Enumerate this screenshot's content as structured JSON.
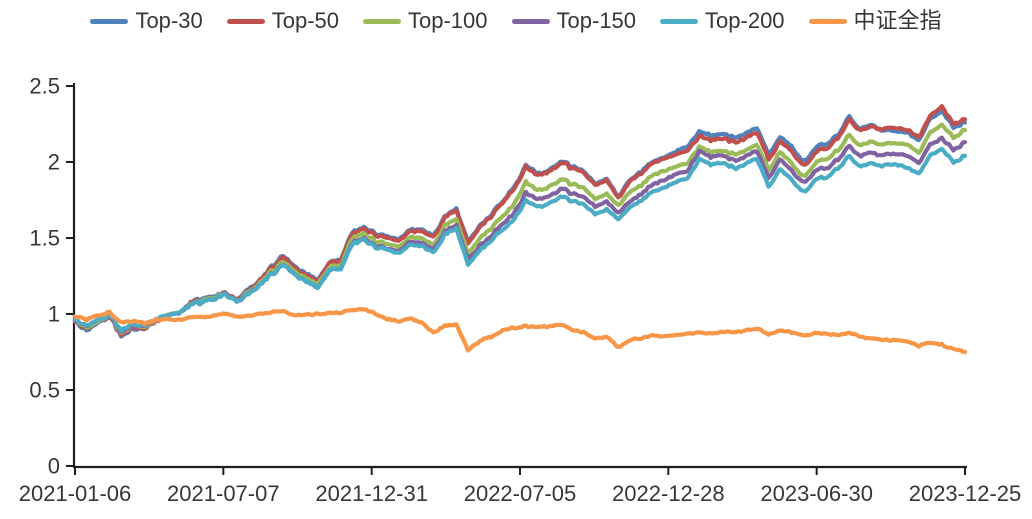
{
  "chart_data": {
    "type": "line",
    "title": "",
    "xlabel": "",
    "ylabel": "",
    "ylim": [
      0,
      2.5
    ],
    "grid": false,
    "legend_position": "top",
    "axis_color": "#1f1f1f",
    "text_color": "#363636",
    "y_tick_labels": [
      "0",
      "0.5",
      "1",
      "1.5",
      "2",
      "2.5"
    ],
    "x_tick_labels": [
      "2021-01-06",
      "2021-07-07",
      "2021-12-31",
      "2022-07-05",
      "2022-12-28",
      "2023-06-30",
      "2023-12-25"
    ],
    "dates": [
      "2021-01-06",
      "2021-01-20",
      "2021-02-03",
      "2021-02-17",
      "2021-03-03",
      "2021-03-17",
      "2021-03-31",
      "2021-04-14",
      "2021-04-28",
      "2021-05-12",
      "2021-05-26",
      "2021-06-09",
      "2021-06-23",
      "2021-07-07",
      "2021-07-21",
      "2021-08-04",
      "2021-08-18",
      "2021-09-01",
      "2021-09-15",
      "2021-09-29",
      "2021-10-13",
      "2021-10-27",
      "2021-11-10",
      "2021-11-24",
      "2021-12-08",
      "2021-12-22",
      "2022-01-05",
      "2022-01-19",
      "2022-02-02",
      "2022-02-16",
      "2022-03-02",
      "2022-03-16",
      "2022-03-30",
      "2022-04-13",
      "2022-04-27",
      "2022-05-11",
      "2022-05-25",
      "2022-06-08",
      "2022-06-22",
      "2022-07-06",
      "2022-07-20",
      "2022-08-03",
      "2022-08-17",
      "2022-08-31",
      "2022-09-14",
      "2022-09-28",
      "2022-10-12",
      "2022-10-26",
      "2022-11-09",
      "2022-11-23",
      "2022-12-07",
      "2022-12-21",
      "2023-01-04",
      "2023-01-18",
      "2023-02-01",
      "2023-02-15",
      "2023-03-01",
      "2023-03-15",
      "2023-03-29",
      "2023-04-12",
      "2023-04-26",
      "2023-05-10",
      "2023-05-24",
      "2023-06-07",
      "2023-06-21",
      "2023-07-05",
      "2023-07-19",
      "2023-08-02",
      "2023-08-16",
      "2023-08-30",
      "2023-09-13",
      "2023-09-27",
      "2023-10-11",
      "2023-10-25",
      "2023-11-08",
      "2023-11-22",
      "2023-12-06",
      "2023-12-25"
    ],
    "series": [
      {
        "name": "Top-30",
        "slug": "top-30",
        "color": "#4F81BD",
        "values": [
          0.96,
          0.89,
          0.94,
          0.98,
          0.86,
          0.9,
          0.9,
          0.95,
          0.99,
          1.01,
          1.07,
          1.1,
          1.12,
          1.14,
          1.1,
          1.16,
          1.23,
          1.31,
          1.38,
          1.31,
          1.26,
          1.23,
          1.33,
          1.36,
          1.54,
          1.57,
          1.53,
          1.51,
          1.49,
          1.56,
          1.55,
          1.51,
          1.64,
          1.69,
          1.47,
          1.58,
          1.65,
          1.75,
          1.83,
          1.98,
          1.92,
          1.94,
          2.01,
          1.97,
          1.94,
          1.86,
          1.89,
          1.77,
          1.88,
          1.93,
          2.01,
          2.03,
          2.06,
          2.11,
          2.2,
          2.17,
          2.19,
          2.16,
          2.19,
          2.22,
          2.05,
          2.16,
          2.1,
          2.0,
          2.09,
          2.12,
          2.18,
          2.3,
          2.21,
          2.25,
          2.2,
          2.21,
          2.2,
          2.14,
          2.29,
          2.33,
          2.23,
          2.26
        ]
      },
      {
        "name": "Top-50",
        "slug": "top-50",
        "color": "#C0504D",
        "values": [
          0.96,
          0.9,
          0.95,
          0.98,
          0.87,
          0.91,
          0.9,
          0.95,
          0.99,
          1.01,
          1.07,
          1.09,
          1.11,
          1.14,
          1.1,
          1.15,
          1.23,
          1.3,
          1.37,
          1.3,
          1.25,
          1.22,
          1.33,
          1.35,
          1.53,
          1.56,
          1.52,
          1.5,
          1.48,
          1.55,
          1.54,
          1.5,
          1.63,
          1.68,
          1.46,
          1.57,
          1.64,
          1.74,
          1.82,
          1.97,
          1.91,
          1.93,
          2.0,
          1.96,
          1.93,
          1.85,
          1.88,
          1.76,
          1.87,
          1.92,
          2.0,
          2.02,
          2.04,
          2.08,
          2.17,
          2.14,
          2.16,
          2.13,
          2.16,
          2.19,
          2.02,
          2.13,
          2.07,
          1.97,
          2.06,
          2.09,
          2.16,
          2.28,
          2.2,
          2.24,
          2.21,
          2.23,
          2.22,
          2.16,
          2.31,
          2.36,
          2.25,
          2.28
        ]
      },
      {
        "name": "Top-100",
        "slug": "top-100",
        "color": "#9BBB59",
        "values": [
          0.97,
          0.91,
          0.95,
          0.99,
          0.88,
          0.92,
          0.91,
          0.96,
          0.99,
          1.01,
          1.06,
          1.09,
          1.11,
          1.13,
          1.09,
          1.14,
          1.21,
          1.28,
          1.34,
          1.28,
          1.23,
          1.2,
          1.3,
          1.32,
          1.5,
          1.53,
          1.48,
          1.46,
          1.44,
          1.51,
          1.49,
          1.45,
          1.58,
          1.62,
          1.39,
          1.5,
          1.56,
          1.65,
          1.72,
          1.87,
          1.81,
          1.83,
          1.89,
          1.85,
          1.83,
          1.76,
          1.79,
          1.71,
          1.8,
          1.84,
          1.92,
          1.94,
          1.96,
          2.0,
          2.1,
          2.06,
          2.08,
          2.05,
          2.08,
          2.11,
          1.95,
          2.06,
          1.99,
          1.9,
          1.99,
          2.02,
          2.08,
          2.18,
          2.1,
          2.14,
          2.11,
          2.13,
          2.12,
          2.06,
          2.2,
          2.24,
          2.16,
          2.21
        ]
      },
      {
        "name": "Top-150",
        "slug": "top-150",
        "color": "#8064A2",
        "values": [
          0.97,
          0.92,
          0.96,
          0.99,
          0.89,
          0.92,
          0.92,
          0.96,
          0.99,
          1.01,
          1.06,
          1.08,
          1.1,
          1.13,
          1.09,
          1.13,
          1.2,
          1.26,
          1.32,
          1.26,
          1.21,
          1.18,
          1.28,
          1.3,
          1.47,
          1.5,
          1.45,
          1.43,
          1.41,
          1.48,
          1.46,
          1.42,
          1.54,
          1.58,
          1.35,
          1.45,
          1.51,
          1.6,
          1.66,
          1.8,
          1.75,
          1.77,
          1.83,
          1.79,
          1.77,
          1.71,
          1.74,
          1.66,
          1.74,
          1.78,
          1.86,
          1.88,
          1.91,
          1.95,
          2.07,
          2.03,
          2.05,
          2.01,
          2.04,
          2.07,
          1.9,
          2.01,
          1.94,
          1.86,
          1.94,
          1.96,
          2.02,
          2.11,
          2.03,
          2.07,
          2.04,
          2.06,
          2.05,
          1.99,
          2.12,
          2.15,
          2.08,
          2.13
        ]
      },
      {
        "name": "Top-200",
        "slug": "top-200",
        "color": "#4BACC6",
        "values": [
          0.97,
          0.92,
          0.96,
          0.99,
          0.9,
          0.93,
          0.92,
          0.96,
          0.99,
          1.01,
          1.06,
          1.08,
          1.1,
          1.13,
          1.09,
          1.13,
          1.2,
          1.26,
          1.32,
          1.26,
          1.21,
          1.18,
          1.28,
          1.3,
          1.46,
          1.49,
          1.44,
          1.42,
          1.4,
          1.46,
          1.44,
          1.4,
          1.52,
          1.56,
          1.32,
          1.42,
          1.48,
          1.56,
          1.62,
          1.75,
          1.7,
          1.72,
          1.78,
          1.74,
          1.72,
          1.66,
          1.69,
          1.62,
          1.7,
          1.74,
          1.81,
          1.83,
          1.86,
          1.9,
          2.02,
          1.98,
          2.0,
          1.96,
          1.99,
          2.02,
          1.84,
          1.95,
          1.88,
          1.8,
          1.88,
          1.9,
          1.96,
          2.04,
          1.96,
          2.0,
          1.97,
          1.99,
          1.97,
          1.92,
          2.05,
          2.08,
          2.0,
          2.04
        ]
      },
      {
        "name": "中证全指",
        "slug": "csi-all-share",
        "color": "#F79646",
        "values": [
          0.99,
          0.96,
          0.99,
          1.01,
          0.94,
          0.95,
          0.94,
          0.96,
          0.97,
          0.96,
          0.98,
          0.98,
          0.99,
          1.0,
          0.98,
          0.99,
          1.0,
          1.01,
          1.02,
          0.99,
          1.0,
          1.0,
          1.01,
          1.01,
          1.03,
          1.03,
          1.0,
          0.97,
          0.95,
          0.97,
          0.94,
          0.88,
          0.92,
          0.93,
          0.76,
          0.82,
          0.85,
          0.89,
          0.91,
          0.92,
          0.91,
          0.92,
          0.93,
          0.9,
          0.88,
          0.84,
          0.85,
          0.78,
          0.83,
          0.84,
          0.86,
          0.85,
          0.86,
          0.87,
          0.88,
          0.87,
          0.88,
          0.88,
          0.89,
          0.9,
          0.87,
          0.89,
          0.88,
          0.86,
          0.87,
          0.87,
          0.86,
          0.88,
          0.85,
          0.84,
          0.83,
          0.83,
          0.82,
          0.79,
          0.81,
          0.8,
          0.77,
          0.75
        ]
      }
    ]
  }
}
